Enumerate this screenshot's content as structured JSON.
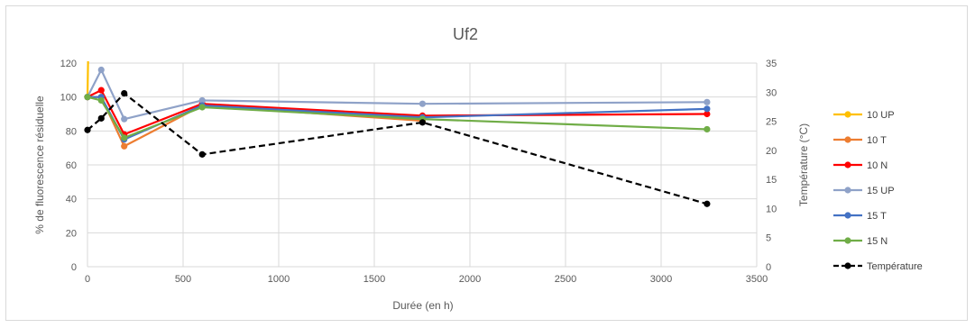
{
  "chart_data": {
    "type": "line",
    "title": "Uf2",
    "xlabel": "Durée (en h)",
    "ylabel": "% de fluorescence résiduelle",
    "y2label": "Température (°C)",
    "xlim": [
      0,
      3500
    ],
    "ylim": [
      0,
      120
    ],
    "y2lim": [
      0,
      35
    ],
    "xticks": [
      "0",
      "500",
      "1000",
      "1500",
      "2000",
      "2500",
      "3000",
      "3500"
    ],
    "yticks": [
      "0",
      "20",
      "40",
      "60",
      "80",
      "100",
      "120"
    ],
    "y2ticks": [
      "0",
      "5",
      "10",
      "15",
      "20",
      "25",
      "30",
      "35"
    ],
    "grid": true,
    "legend": "right",
    "series": [
      {
        "name": "10 UP",
        "axis": "left",
        "color": "#FFC000",
        "dashed": false,
        "x": [
          0,
          5
        ],
        "y": [
          100,
          135
        ]
      },
      {
        "name": "10 T",
        "axis": "left",
        "color": "#ED7D31",
        "dashed": false,
        "x": [
          0,
          72,
          192,
          600,
          1752
        ],
        "y": [
          100,
          100,
          71,
          95,
          86
        ]
      },
      {
        "name": "10 N",
        "axis": "left",
        "color": "#FF0000",
        "dashed": false,
        "x": [
          0,
          72,
          192,
          600,
          1752,
          3240
        ],
        "y": [
          100,
          104,
          78,
          96,
          89,
          90
        ]
      },
      {
        "name": "15 UP",
        "axis": "left",
        "color": "#8FA2C8",
        "dashed": false,
        "x": [
          0,
          72,
          192,
          600,
          1752,
          3240
        ],
        "y": [
          100,
          116,
          87,
          98,
          96,
          97
        ]
      },
      {
        "name": "15 T",
        "axis": "left",
        "color": "#4472C4",
        "dashed": false,
        "x": [
          0,
          72,
          192,
          600,
          1752,
          3240
        ],
        "y": [
          100,
          100,
          75,
          95,
          88,
          93
        ]
      },
      {
        "name": "15 N",
        "axis": "left",
        "color": "#70AD47",
        "dashed": false,
        "x": [
          0,
          72,
          192,
          600,
          1752,
          3240
        ],
        "y": [
          100,
          98,
          76,
          94,
          87,
          81
        ]
      },
      {
        "name": "Température",
        "axis": "right",
        "color": "#000000",
        "dashed": true,
        "x": [
          0,
          72,
          192,
          600,
          1752,
          3240
        ],
        "y": [
          23.5,
          25.5,
          29.8,
          19.3,
          24.8,
          10.8
        ]
      }
    ]
  }
}
